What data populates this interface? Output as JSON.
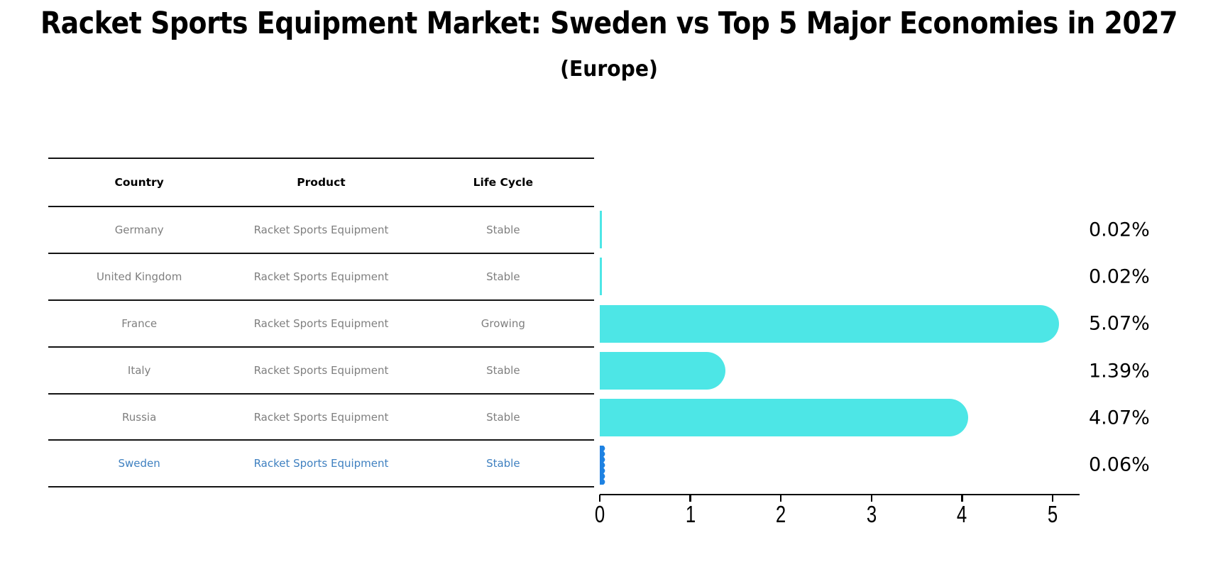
{
  "title": "Racket Sports Equipment Market: Sweden vs Top 5 Major Economies in 2027",
  "subtitle": "(Europe)",
  "table": {
    "headers": [
      "Country",
      "Product",
      "Life Cycle"
    ],
    "rows": [
      {
        "country": "Germany",
        "product": "Racket Sports Equipment",
        "life_cycle": "Stable"
      },
      {
        "country": "United Kingdom",
        "product": "Racket Sports Equipment",
        "life_cycle": "Stable"
      },
      {
        "country": "France",
        "product": "Racket Sports Equipment",
        "life_cycle": "Growing"
      },
      {
        "country": "Italy",
        "product": "Racket Sports Equipment",
        "life_cycle": "Stable"
      },
      {
        "country": "Russia",
        "product": "Racket Sports Equipment",
        "life_cycle": "Stable"
      },
      {
        "country": "Sweden",
        "product": "Racket Sports Equipment",
        "life_cycle": "Stable"
      }
    ]
  },
  "chart_data": {
    "type": "bar",
    "orientation": "horizontal",
    "title": "Racket Sports Equipment Market: Sweden vs Top 5 Major Economies in 2027 (Europe)",
    "categories": [
      "Germany",
      "United Kingdom",
      "France",
      "Italy",
      "Russia",
      "Sweden"
    ],
    "values": [
      0.02,
      0.02,
      5.07,
      1.39,
      4.07,
      0.06
    ],
    "value_labels": [
      "0.02%",
      "0.02%",
      "5.07%",
      "1.39%",
      "4.07%",
      "0.06%"
    ],
    "x_ticks": [
      "0",
      "1",
      "2",
      "3",
      "4",
      "5"
    ],
    "xlim": [
      0,
      5.3
    ],
    "grid": false,
    "legend": false,
    "bar_color": "#4de6e6",
    "highlight_index": 5,
    "highlight_bar_color": "#1e82e2",
    "highlight_text_color": "#3f80c0"
  },
  "colors": {
    "background": "#ffffff",
    "title_text": "#000000",
    "table_header_text": "#000000",
    "table_body_text": "#7f7f7f",
    "rule_line": "#141414",
    "axis": "#000000"
  }
}
